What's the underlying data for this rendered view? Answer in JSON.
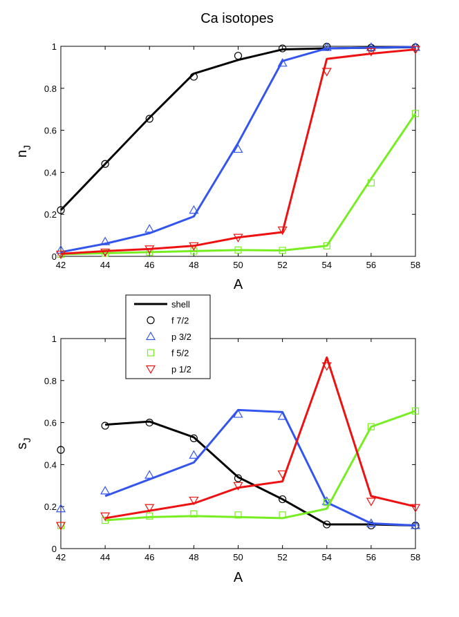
{
  "figure": {
    "title": "Ca isotopes"
  },
  "chart_data": [
    {
      "type": "line",
      "xlabel": "A",
      "ylabel_main": "n",
      "ylabel_sub": "J",
      "xlim": [
        42,
        58
      ],
      "ylim": [
        0,
        1
      ],
      "xticks": [
        "42",
        "44",
        "46",
        "48",
        "50",
        "52",
        "54",
        "56",
        "58"
      ],
      "yticks": [
        "0",
        "0.2",
        "0.4",
        "0.6",
        "0.8",
        "1"
      ],
      "grid": false,
      "series": [
        {
          "key": "f72",
          "color": "#000000",
          "marker": "circle",
          "line_x": [
            42,
            44,
            46,
            48,
            50,
            52,
            54,
            56,
            58
          ],
          "line_y": [
            0.22,
            0.44,
            0.66,
            0.87,
            0.935,
            0.985,
            0.99,
            0.993,
            0.996
          ],
          "points_x": [
            42,
            44,
            46,
            48,
            50,
            52,
            54,
            56,
            58
          ],
          "points_y": [
            0.22,
            0.44,
            0.655,
            0.855,
            0.955,
            0.99,
            0.998,
            0.993,
            0.995
          ]
        },
        {
          "key": "p32",
          "color": "#3355ee",
          "marker": "triangle-up",
          "line_x": [
            42,
            44,
            46,
            48,
            50,
            52,
            54,
            56,
            58
          ],
          "line_y": [
            0.02,
            0.06,
            0.11,
            0.19,
            0.54,
            0.93,
            0.99,
            0.993,
            0.997
          ],
          "points_x": [
            42,
            44,
            46,
            48,
            50,
            52,
            54,
            56,
            58
          ],
          "points_y": [
            0.03,
            0.07,
            0.13,
            0.22,
            0.51,
            0.92,
            0.995,
            0.995,
            0.995
          ]
        },
        {
          "key": "f52",
          "color": "#77ee22",
          "marker": "square",
          "line_x": [
            42,
            44,
            46,
            48,
            50,
            52,
            54,
            56,
            58
          ],
          "line_y": [
            0.01,
            0.015,
            0.02,
            0.025,
            0.03,
            0.028,
            0.05,
            0.37,
            0.68
          ],
          "points_x": [
            42,
            44,
            46,
            48,
            50,
            52,
            54,
            56,
            58
          ],
          "points_y": [
            0.01,
            0.015,
            0.02,
            0.025,
            0.03,
            0.028,
            0.05,
            0.35,
            0.68
          ]
        },
        {
          "key": "p12",
          "color": "#ee1111",
          "marker": "triangle-down",
          "line_x": [
            42,
            44,
            46,
            48,
            50,
            52,
            54,
            56,
            58
          ],
          "line_y": [
            0.012,
            0.025,
            0.035,
            0.05,
            0.09,
            0.115,
            0.94,
            0.965,
            0.985
          ],
          "points_x": [
            42,
            44,
            46,
            48,
            50,
            52,
            54,
            56,
            58
          ],
          "points_y": [
            0.01,
            0.02,
            0.035,
            0.05,
            0.09,
            0.125,
            0.88,
            0.975,
            0.985
          ]
        }
      ]
    },
    {
      "type": "line",
      "xlabel": "A",
      "ylabel_main": "s",
      "ylabel_sub": "J",
      "xlim": [
        42,
        58
      ],
      "ylim": [
        0,
        1
      ],
      "xticks": [
        "42",
        "44",
        "46",
        "48",
        "50",
        "52",
        "54",
        "56",
        "58"
      ],
      "yticks": [
        "0",
        "0.2",
        "0.4",
        "0.6",
        "0.8",
        "1"
      ],
      "grid": false,
      "legend": {
        "placement": "top-left",
        "entries": [
          {
            "label": "shell",
            "color": "#000000",
            "marker": "line"
          },
          {
            "label": "f 7/2",
            "color": "#000000",
            "marker": "circle"
          },
          {
            "label": "p 3/2",
            "color": "#3355ee",
            "marker": "triangle-up"
          },
          {
            "label": "f 5/2",
            "color": "#77ee22",
            "marker": "square"
          },
          {
            "label": "p 1/2",
            "color": "#ee1111",
            "marker": "triangle-down"
          }
        ]
      },
      "series": [
        {
          "key": "f72",
          "color": "#000000",
          "marker": "circle",
          "line_x": [
            44,
            46,
            48,
            50,
            52,
            54,
            56,
            58
          ],
          "line_y": [
            0.59,
            0.605,
            0.53,
            0.34,
            0.235,
            0.115,
            0.115,
            0.11
          ],
          "points_x": [
            42,
            44,
            46,
            48,
            50,
            52,
            54,
            56,
            58
          ],
          "points_y": [
            0.47,
            0.585,
            0.6,
            0.525,
            0.335,
            0.235,
            0.115,
            0.11,
            0.11
          ]
        },
        {
          "key": "p32",
          "color": "#3355ee",
          "marker": "triangle-up",
          "line_x": [
            44,
            46,
            48,
            50,
            52,
            54,
            56,
            58
          ],
          "line_y": [
            0.25,
            0.33,
            0.41,
            0.66,
            0.65,
            0.22,
            0.12,
            0.11
          ],
          "points_x": [
            42,
            44,
            46,
            48,
            50,
            52,
            54,
            56,
            58
          ],
          "points_y": [
            0.19,
            0.275,
            0.35,
            0.445,
            0.64,
            0.63,
            0.225,
            0.12,
            0.11
          ]
        },
        {
          "key": "f52",
          "color": "#77ee22",
          "marker": "square",
          "line_x": [
            44,
            46,
            48,
            50,
            52,
            54,
            56,
            58
          ],
          "line_y": [
            0.135,
            0.15,
            0.155,
            0.15,
            0.145,
            0.19,
            0.58,
            0.655
          ],
          "points_x": [
            42,
            44,
            46,
            48,
            50,
            52,
            54,
            56,
            58
          ],
          "points_y": [
            0.11,
            0.135,
            0.155,
            0.165,
            0.16,
            0.16,
            0.22,
            0.58,
            0.655
          ]
        },
        {
          "key": "p12",
          "color": "#ee1111",
          "marker": "triangle-down",
          "line_x": [
            44,
            46,
            48,
            50,
            52,
            54,
            56,
            58
          ],
          "line_y": [
            0.145,
            0.18,
            0.215,
            0.29,
            0.32,
            0.91,
            0.25,
            0.2
          ],
          "points_x": [
            42,
            44,
            46,
            48,
            50,
            52,
            54,
            56,
            58
          ],
          "points_y": [
            0.11,
            0.155,
            0.195,
            0.23,
            0.3,
            0.355,
            0.87,
            0.225,
            0.195
          ]
        }
      ]
    }
  ]
}
